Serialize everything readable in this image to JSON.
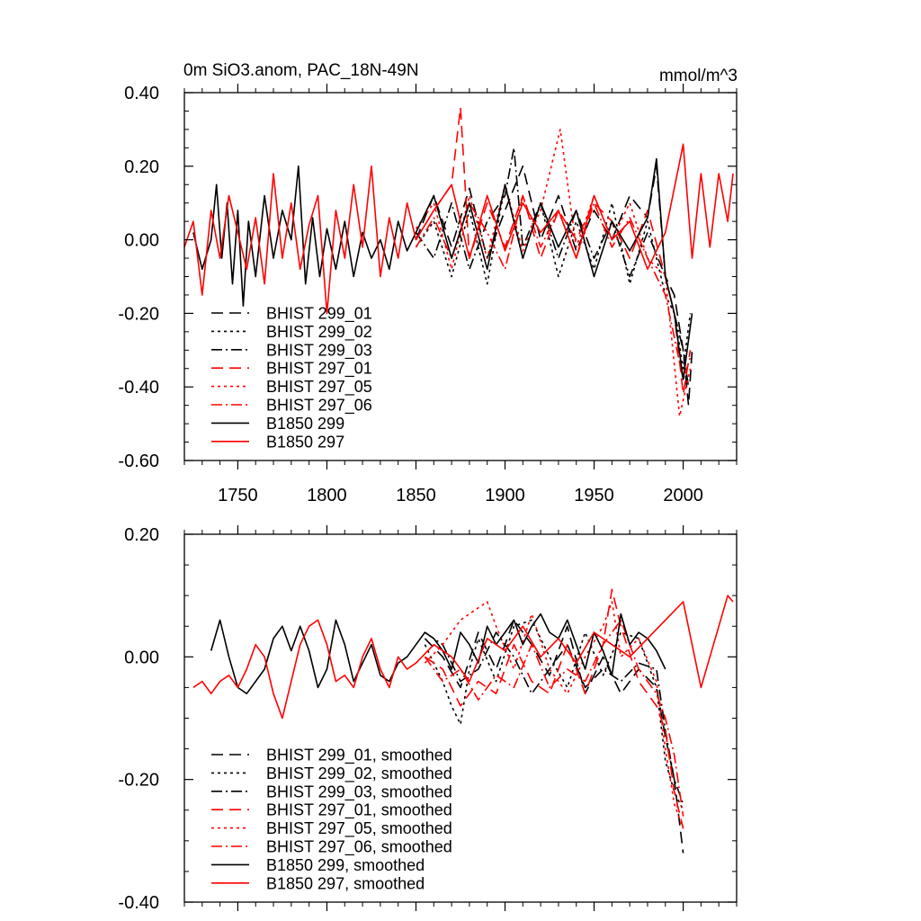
{
  "chart_data": [
    {
      "type": "line",
      "title_left": "0m SiO3.anom, PAC_18N-49N",
      "title_right": "mmol/m^3",
      "xlabel": "",
      "ylabel": "",
      "xlim": [
        1720,
        2030
      ],
      "ylim": [
        -0.6,
        0.4
      ],
      "xticks": [
        1750,
        1800,
        1850,
        1900,
        1950,
        2000
      ],
      "xtick_labels": [
        "1750",
        "1800",
        "1850",
        "1900",
        "1950",
        "2000"
      ],
      "yticks": [
        0.4,
        0.2,
        0.0,
        -0.2,
        -0.4,
        -0.6
      ],
      "ytick_labels": [
        "0.40",
        "0.20",
        "0.00",
        "-0.20",
        "-0.40",
        "-0.60"
      ],
      "legend_position": "bottom-left",
      "series": [
        {
          "name": "BHIST 299_01",
          "color": "#000000",
          "dash": "dash",
          "x": [
            1850,
            1860,
            1870,
            1880,
            1890,
            1900,
            1910,
            1920,
            1930,
            1940,
            1950,
            1960,
            1970,
            1980,
            1985,
            1990,
            1995,
            2000,
            2003,
            2005
          ],
          "y": [
            0.0,
            0.12,
            -0.02,
            0.14,
            -0.05,
            0.08,
            0.2,
            0.0,
            0.12,
            -0.03,
            0.08,
            0.0,
            0.12,
            0.06,
            0.2,
            -0.1,
            -0.15,
            -0.3,
            -0.45,
            -0.3
          ]
        },
        {
          "name": "BHIST 299_02",
          "color": "#000000",
          "dash": "dot",
          "x": [
            1850,
            1860,
            1870,
            1880,
            1890,
            1900,
            1910,
            1920,
            1930,
            1940,
            1950,
            1960,
            1970,
            1980,
            1990,
            1995,
            2000,
            2004
          ],
          "y": [
            -0.02,
            0.05,
            -0.1,
            0.08,
            -0.12,
            0.15,
            -0.05,
            0.1,
            -0.1,
            0.05,
            -0.08,
            0.1,
            -0.12,
            0.05,
            -0.15,
            -0.2,
            -0.35,
            -0.2
          ]
        },
        {
          "name": "BHIST 299_03",
          "color": "#000000",
          "dash": "dashdot",
          "x": [
            1850,
            1860,
            1870,
            1880,
            1890,
            1900,
            1905,
            1910,
            1920,
            1930,
            1940,
            1950,
            1960,
            1970,
            1980,
            1990,
            2000,
            2003
          ],
          "y": [
            0.02,
            -0.05,
            0.1,
            -0.08,
            0.05,
            0.12,
            0.25,
            -0.02,
            0.1,
            -0.05,
            0.08,
            -0.05,
            0.05,
            -0.1,
            0.02,
            -0.1,
            -0.3,
            -0.4
          ]
        },
        {
          "name": "BHIST 297_01",
          "color": "#ff0000",
          "dash": "dash",
          "x": [
            1850,
            1860,
            1870,
            1875,
            1880,
            1890,
            1900,
            1910,
            1920,
            1930,
            1940,
            1950,
            1960,
            1970,
            1980,
            1990,
            1995,
            2000,
            2004
          ],
          "y": [
            0.0,
            0.08,
            0.15,
            0.36,
            -0.05,
            0.1,
            -0.02,
            0.12,
            -0.05,
            0.08,
            0.0,
            0.1,
            0.05,
            -0.05,
            0.08,
            -0.1,
            -0.2,
            -0.42,
            -0.3
          ]
        },
        {
          "name": "BHIST 297_05",
          "color": "#ff0000",
          "dash": "dot",
          "x": [
            1850,
            1860,
            1870,
            1880,
            1890,
            1900,
            1910,
            1920,
            1931,
            1940,
            1950,
            1960,
            1970,
            1980,
            1990,
            1998,
            2004
          ],
          "y": [
            0.03,
            0.1,
            -0.08,
            0.12,
            -0.05,
            0.15,
            -0.03,
            0.08,
            0.3,
            -0.02,
            0.12,
            0.0,
            0.1,
            -0.05,
            -0.1,
            -0.48,
            -0.35
          ]
        },
        {
          "name": "BHIST 297_06",
          "color": "#ff0000",
          "dash": "dashdot",
          "x": [
            1850,
            1860,
            1870,
            1880,
            1890,
            1900,
            1910,
            1920,
            1930,
            1940,
            1950,
            1960,
            1970,
            1980,
            1990,
            2000,
            2004
          ],
          "y": [
            -0.02,
            0.06,
            -0.05,
            0.1,
            0.02,
            -0.08,
            0.12,
            -0.02,
            0.08,
            -0.05,
            0.1,
            -0.02,
            0.06,
            -0.05,
            -0.15,
            -0.38,
            -0.32
          ]
        },
        {
          "name": "B1850 299",
          "color": "#000000",
          "dash": "solid",
          "x": [
            1725,
            1730,
            1735,
            1738,
            1741,
            1744,
            1747,
            1750,
            1753,
            1756,
            1760,
            1765,
            1770,
            1775,
            1780,
            1784,
            1788,
            1792,
            1796,
            1800,
            1805,
            1810,
            1815,
            1820,
            1825,
            1830,
            1835,
            1840,
            1845,
            1850,
            1860,
            1870,
            1880,
            1890,
            1900,
            1910,
            1920,
            1930,
            1940,
            1950,
            1960,
            1970,
            1980,
            1985,
            1990,
            1995,
            2000,
            2005
          ],
          "y": [
            0.02,
            -0.08,
            0.0,
            0.15,
            -0.05,
            0.1,
            -0.12,
            0.08,
            -0.18,
            0.05,
            -0.1,
            0.12,
            -0.05,
            0.08,
            0.0,
            0.2,
            -0.12,
            0.06,
            -0.1,
            0.03,
            -0.08,
            0.05,
            -0.1,
            0.02,
            -0.05,
            0.0,
            -0.08,
            0.05,
            -0.03,
            0.02,
            0.12,
            -0.05,
            0.1,
            -0.08,
            0.15,
            -0.05,
            0.1,
            -0.02,
            0.08,
            -0.1,
            0.05,
            -0.03,
            0.06,
            0.22,
            -0.1,
            -0.2,
            -0.38,
            -0.2
          ]
        },
        {
          "name": "B1850 297",
          "color": "#ff0000",
          "dash": "solid",
          "x": [
            1720,
            1725,
            1730,
            1735,
            1740,
            1745,
            1750,
            1755,
            1760,
            1765,
            1770,
            1775,
            1780,
            1785,
            1790,
            1795,
            1800,
            1805,
            1810,
            1815,
            1820,
            1825,
            1830,
            1835,
            1840,
            1845,
            1850,
            1860,
            1870,
            1880,
            1890,
            1900,
            1910,
            1920,
            1930,
            1940,
            1950,
            1960,
            1970,
            1980,
            1990,
            2000,
            2005,
            2010,
            2015,
            2020,
            2025,
            2028
          ],
          "y": [
            -0.02,
            0.05,
            -0.15,
            0.08,
            -0.05,
            0.12,
            0.02,
            -0.08,
            0.06,
            -0.12,
            0.18,
            -0.05,
            0.1,
            -0.08,
            0.04,
            0.12,
            -0.2,
            0.08,
            -0.05,
            0.15,
            -0.02,
            0.2,
            -0.1,
            0.06,
            -0.05,
            0.1,
            0.0,
            0.08,
            0.15,
            -0.05,
            0.12,
            -0.03,
            0.1,
            0.02,
            0.08,
            -0.05,
            0.12,
            0.0,
            0.05,
            -0.08,
            0.02,
            0.26,
            -0.05,
            0.18,
            -0.02,
            0.18,
            0.05,
            0.18
          ]
        }
      ]
    },
    {
      "type": "line",
      "title_left": "",
      "title_right": "",
      "xlabel": "",
      "ylabel": "",
      "xlim": [
        1720,
        2030
      ],
      "ylim": [
        -0.4,
        0.2
      ],
      "xticks": [
        1750,
        1800,
        1850,
        1900,
        1950,
        2000
      ],
      "xtick_labels": [],
      "yticks": [
        0.2,
        0.0,
        -0.2,
        -0.4
      ],
      "ytick_labels": [
        "0.20",
        "0.00",
        "-0.20",
        "-0.40"
      ],
      "legend_position": "bottom-left",
      "series": [
        {
          "name": "BHIST 299_01, smoothed",
          "color": "#000000",
          "dash": "dash",
          "x": [
            1855,
            1865,
            1875,
            1885,
            1895,
            1905,
            1915,
            1925,
            1935,
            1945,
            1955,
            1965,
            1975,
            1985,
            1990,
            1995,
            2000
          ],
          "y": [
            0.03,
            0.0,
            -0.05,
            0.04,
            -0.02,
            0.06,
            0.02,
            -0.03,
            0.05,
            -0.06,
            0.0,
            -0.06,
            -0.02,
            -0.05,
            -0.13,
            -0.2,
            -0.32
          ]
        },
        {
          "name": "BHIST 299_02, smoothed",
          "color": "#000000",
          "dash": "dot",
          "x": [
            1855,
            1865,
            1870,
            1875,
            1880,
            1885,
            1895,
            1905,
            1915,
            1925,
            1935,
            1945,
            1955,
            1965,
            1975,
            1985,
            1990,
            1995,
            2000
          ],
          "y": [
            0.02,
            -0.04,
            -0.08,
            -0.11,
            -0.02,
            0.03,
            -0.04,
            0.05,
            0.06,
            0.0,
            -0.05,
            0.04,
            -0.03,
            0.04,
            0.03,
            -0.05,
            -0.17,
            -0.22,
            -0.25
          ]
        },
        {
          "name": "BHIST 299_03, smoothed",
          "color": "#000000",
          "dash": "dashdot",
          "x": [
            1855,
            1865,
            1875,
            1885,
            1895,
            1905,
            1915,
            1925,
            1935,
            1945,
            1955,
            1965,
            1975,
            1985,
            1990,
            1995,
            2000
          ],
          "y": [
            0.04,
            0.02,
            -0.04,
            -0.02,
            0.04,
            0.0,
            -0.06,
            -0.02,
            0.02,
            -0.05,
            -0.02,
            -0.04,
            -0.01,
            -0.02,
            -0.12,
            -0.2,
            -0.24
          ]
        },
        {
          "name": "BHIST 297_01, smoothed",
          "color": "#ff0000",
          "dash": "dash",
          "x": [
            1855,
            1865,
            1875,
            1885,
            1895,
            1905,
            1915,
            1925,
            1935,
            1945,
            1955,
            1960,
            1965,
            1975,
            1985,
            1990,
            1995,
            2000
          ],
          "y": [
            0.0,
            -0.02,
            -0.08,
            -0.04,
            -0.06,
            0.02,
            -0.04,
            -0.06,
            0.02,
            -0.06,
            0.02,
            0.11,
            0.05,
            -0.04,
            -0.08,
            -0.12,
            -0.22,
            -0.28
          ]
        },
        {
          "name": "BHIST 297_05, smoothed",
          "color": "#ff0000",
          "dash": "dot",
          "x": [
            1855,
            1865,
            1875,
            1885,
            1890,
            1895,
            1905,
            1915,
            1925,
            1935,
            1945,
            1955,
            1960,
            1965,
            1975,
            1985,
            1990,
            1995,
            2000
          ],
          "y": [
            -0.01,
            0.02,
            0.06,
            0.08,
            0.09,
            0.05,
            -0.02,
            0.07,
            -0.02,
            -0.06,
            0.0,
            0.05,
            0.09,
            0.0,
            0.03,
            -0.04,
            -0.15,
            -0.24,
            -0.28
          ]
        },
        {
          "name": "BHIST 297_06, smoothed",
          "color": "#ff0000",
          "dash": "dashdot",
          "x": [
            1855,
            1865,
            1875,
            1885,
            1895,
            1905,
            1915,
            1925,
            1935,
            1945,
            1955,
            1965,
            1975,
            1985,
            1990,
            1995,
            2000
          ],
          "y": [
            0.0,
            -0.04,
            -0.02,
            -0.07,
            -0.03,
            -0.05,
            0.02,
            -0.05,
            -0.02,
            -0.04,
            0.02,
            0.06,
            -0.02,
            -0.06,
            -0.1,
            -0.16,
            -0.26
          ]
        },
        {
          "name": "B1850 299, smoothed",
          "color": "#000000",
          "dash": "solid",
          "x": [
            1735,
            1740,
            1745,
            1750,
            1755,
            1760,
            1765,
            1770,
            1775,
            1780,
            1785,
            1790,
            1795,
            1800,
            1805,
            1810,
            1815,
            1820,
            1825,
            1830,
            1835,
            1840,
            1845,
            1850,
            1855,
            1860,
            1865,
            1870,
            1875,
            1880,
            1885,
            1890,
            1895,
            1900,
            1905,
            1910,
            1915,
            1920,
            1925,
            1930,
            1935,
            1940,
            1945,
            1950,
            1955,
            1960,
            1965,
            1970,
            1975,
            1980,
            1985,
            1990
          ],
          "y": [
            0.01,
            0.06,
            0.0,
            -0.05,
            -0.06,
            -0.04,
            -0.02,
            0.03,
            0.05,
            0.01,
            0.05,
            0.01,
            -0.05,
            -0.02,
            0.06,
            0.02,
            -0.04,
            -0.01,
            0.02,
            -0.03,
            -0.04,
            -0.01,
            0.0,
            0.02,
            0.04,
            0.03,
            0.01,
            -0.02,
            0.04,
            0.02,
            -0.01,
            0.05,
            0.02,
            0.04,
            0.06,
            0.02,
            0.05,
            0.07,
            0.04,
            0.03,
            0.06,
            0.02,
            -0.02,
            0.04,
            0.01,
            -0.03,
            0.07,
            0.02,
            0.04,
            0.03,
            0.01,
            -0.02
          ]
        },
        {
          "name": "B1850 297, smoothed",
          "color": "#ff0000",
          "dash": "solid",
          "x": [
            1725,
            1730,
            1735,
            1740,
            1745,
            1750,
            1755,
            1760,
            1765,
            1770,
            1775,
            1780,
            1785,
            1790,
            1795,
            1800,
            1805,
            1810,
            1815,
            1820,
            1825,
            1830,
            1835,
            1840,
            1845,
            1850,
            1860,
            1870,
            1880,
            1890,
            1900,
            1910,
            1920,
            1930,
            1940,
            1950,
            1960,
            1970,
            1980,
            1990,
            2000,
            2005,
            2010,
            2015,
            2020,
            2025,
            2028
          ],
          "y": [
            -0.05,
            -0.04,
            -0.06,
            -0.04,
            -0.03,
            -0.05,
            -0.02,
            0.02,
            0.0,
            -0.06,
            -0.1,
            -0.04,
            0.02,
            0.05,
            0.06,
            0.02,
            -0.04,
            -0.03,
            -0.05,
            0.0,
            0.03,
            -0.02,
            -0.05,
            0.0,
            -0.02,
            -0.01,
            0.02,
            0.0,
            -0.04,
            0.03,
            0.01,
            0.05,
            0.0,
            0.03,
            -0.01,
            0.04,
            0.02,
            0.0,
            0.03,
            0.06,
            0.09,
            0.02,
            -0.05,
            0.0,
            0.05,
            0.1,
            0.09
          ]
        }
      ]
    }
  ]
}
